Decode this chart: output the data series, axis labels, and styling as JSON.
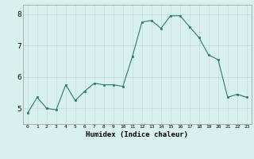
{
  "x": [
    0,
    1,
    2,
    3,
    4,
    5,
    6,
    7,
    8,
    9,
    10,
    11,
    12,
    13,
    14,
    15,
    16,
    17,
    18,
    19,
    20,
    21,
    22,
    23
  ],
  "y": [
    4.85,
    5.35,
    5.0,
    4.95,
    5.75,
    5.25,
    5.55,
    5.8,
    5.75,
    5.75,
    5.7,
    6.65,
    7.75,
    7.8,
    7.55,
    7.95,
    7.95,
    7.6,
    7.25,
    6.7,
    6.55,
    5.35,
    5.45,
    5.35
  ],
  "title": "",
  "xlabel": "Humidex (Indice chaleur)",
  "ylabel": "",
  "ylim": [
    4.5,
    8.3
  ],
  "xlim": [
    -0.5,
    23.5
  ],
  "line_color": "#2d7b6b",
  "marker_color": "#2d7b6b",
  "bg_color": "#d8f0ee",
  "grid_color": "#c0dcd8",
  "yticks": [
    5,
    6,
    7,
    8
  ],
  "xticks": [
    0,
    1,
    2,
    3,
    4,
    5,
    6,
    7,
    8,
    9,
    10,
    11,
    12,
    13,
    14,
    15,
    16,
    17,
    18,
    19,
    20,
    21,
    22,
    23
  ]
}
